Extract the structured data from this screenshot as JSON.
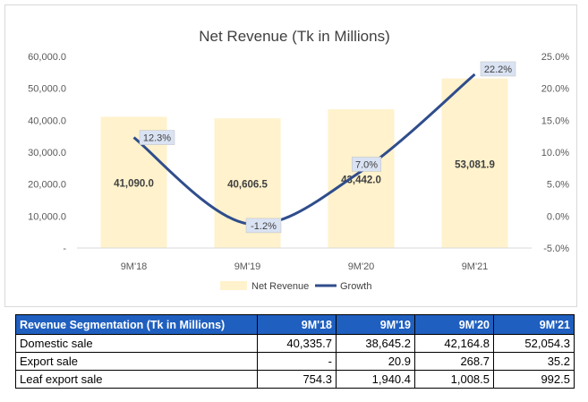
{
  "chart_data": {
    "type": "bar+line",
    "title": "Net Revenue (Tk in Millions)",
    "categories": [
      "9M'18",
      "9M'19",
      "9M'20",
      "9M'21"
    ],
    "series": [
      {
        "name": "Net Revenue",
        "type": "bar",
        "axis": "left",
        "values": [
          41090.0,
          40606.5,
          43442.0,
          53081.9
        ],
        "labels": [
          "41,090.0",
          "40,606.5",
          "43,442.0",
          "53,081.9"
        ],
        "color": "#fff2cc"
      },
      {
        "name": "Growth",
        "type": "line",
        "axis": "right",
        "values": [
          12.3,
          -1.2,
          7.0,
          22.2
        ],
        "labels": [
          "12.3%",
          "-1.2%",
          "7.0%",
          "22.2%"
        ],
        "color": "#2f4d8c"
      }
    ],
    "y_left": {
      "min": 0,
      "max": 60000,
      "ticks": [
        0,
        10000,
        20000,
        30000,
        40000,
        50000,
        60000
      ],
      "tick_labels": [
        "-",
        "10,000.0",
        "20,000.0",
        "30,000.0",
        "40,000.0",
        "50,000.0",
        "60,000.0"
      ]
    },
    "y_right": {
      "min": -5,
      "max": 25,
      "ticks": [
        -5,
        0,
        5,
        10,
        15,
        20,
        25
      ],
      "tick_labels": [
        "-5.0%",
        "0.0%",
        "5.0%",
        "10.0%",
        "15.0%",
        "20.0%",
        "25.0%"
      ]
    },
    "grid": false,
    "legend": "bottom"
  },
  "table": {
    "headers": [
      "Revenue Segmentation (Tk in Millions)",
      "9M'18",
      "9M'19",
      "9M'20",
      "9M'21"
    ],
    "rows": [
      {
        "label": "Domestic sale",
        "values": [
          "40,335.7",
          "38,645.2",
          "42,164.8",
          "52,054.3"
        ]
      },
      {
        "label": "Export sale",
        "values": [
          "-",
          "20.9",
          "268.7",
          "35.2"
        ]
      },
      {
        "label": "Leaf export sale",
        "values": [
          "754.3",
          "1,940.4",
          "1,008.5",
          "992.5"
        ]
      }
    ],
    "header_color": "#1f5fbf"
  }
}
